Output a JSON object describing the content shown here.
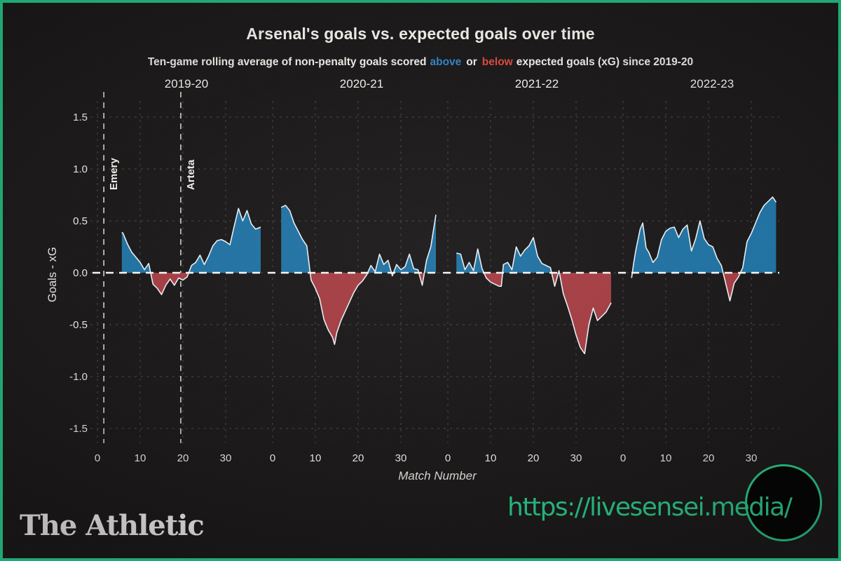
{
  "header": {
    "title": "Arsenal's goals vs. expected goals over time",
    "subtitle": {
      "pre": "Ten-game rolling average of non-penalty goals scored",
      "above_word": "above",
      "or_word": "or",
      "below_word": "below",
      "post": "expected goals (xG) since 2019-20"
    }
  },
  "footer": {
    "logo_text": "The Athletic",
    "watermark_url": "https://livesensei.media/"
  },
  "colors": {
    "background": "#171515",
    "frame_border": "#1fa873",
    "title_text": "#f2f0ec",
    "muted_text": "#dedcd8",
    "above_blue": "#2e80c2",
    "below_red": "#d9453c",
    "area_blue": "#1d6fa0",
    "area_red": "#a23a40",
    "series_line": "#e6edf2",
    "grid": "#454545",
    "zero_line": "#f5f5f3",
    "annotation_line": "#dcdcdc",
    "watermark_green": "#2bc88a"
  },
  "chart_data": {
    "type": "area",
    "title": "Arsenal's goals vs. expected goals over time",
    "subtitle": "Ten-game rolling average of non-penalty goals scored above or below expected goals (xG) since 2019-20",
    "xlabel": "Match Number",
    "ylabel": "Goals - xG",
    "ylim": [
      -1.75,
      1.75
    ],
    "grid": "dashed",
    "fill_rule": "blue above zero, red below zero",
    "yticks": [
      {
        "label": "1.5",
        "value": 1.5
      },
      {
        "label": "1.0",
        "value": 1.0
      },
      {
        "label": "0.5",
        "value": 0.5
      },
      {
        "label": "0.0",
        "value": 0.0
      },
      {
        "label": "-0.5",
        "value": -0.5
      },
      {
        "label": "-1.0",
        "value": -1.0
      },
      {
        "label": "-1.5",
        "value": -1.5
      }
    ],
    "xticks": [
      0,
      10,
      20,
      30
    ],
    "annotations": [
      {
        "label": "Emery",
        "panel": 0,
        "match": 1.5
      },
      {
        "label": "Arteta",
        "panel": 0,
        "match": 19.5
      }
    ],
    "panels": [
      {
        "season": "2019-20",
        "x": [
          5.7,
          6,
          7,
          8,
          9,
          10,
          11,
          12,
          13,
          14,
          15,
          16,
          17,
          18,
          19,
          20,
          21,
          22,
          23,
          24,
          25,
          26,
          27,
          28,
          29,
          30,
          31,
          32,
          33,
          34,
          35,
          36,
          37,
          38.2
        ],
        "y": [
          0.39,
          0.38,
          0.28,
          0.2,
          0.15,
          0.1,
          0.03,
          0.09,
          -0.11,
          -0.15,
          -0.21,
          -0.12,
          -0.06,
          -0.12,
          -0.05,
          -0.07,
          -0.04,
          0.07,
          0.1,
          0.17,
          0.08,
          0.16,
          0.26,
          0.31,
          0.32,
          0.3,
          0.27,
          0.45,
          0.62,
          0.5,
          0.6,
          0.47,
          0.42,
          0.44
        ]
      },
      {
        "season": "2020-21",
        "x": [
          2,
          3,
          4,
          5,
          6,
          7,
          8,
          9,
          10,
          11,
          12,
          13,
          14,
          14.5,
          15,
          16,
          17,
          18,
          19,
          20,
          21,
          22,
          23,
          24,
          25,
          26,
          27,
          28,
          29,
          30,
          31,
          32,
          33,
          34,
          35,
          36,
          37,
          38.2
        ],
        "y": [
          0.63,
          0.65,
          0.6,
          0.48,
          0.4,
          0.32,
          0.26,
          -0.07,
          -0.15,
          -0.25,
          -0.45,
          -0.55,
          -0.62,
          -0.69,
          -0.58,
          -0.46,
          -0.37,
          -0.28,
          -0.19,
          -0.12,
          -0.08,
          -0.02,
          0.07,
          0.01,
          0.18,
          0.08,
          0.12,
          -0.03,
          0.08,
          0.03,
          0.06,
          0.18,
          0.04,
          0.03,
          -0.12,
          0.12,
          0.25,
          0.56
        ]
      },
      {
        "season": "2021-22",
        "x": [
          2,
          3,
          4,
          5,
          6,
          7,
          8,
          9,
          10,
          11,
          12,
          12.5,
          13,
          14,
          15,
          16,
          17,
          18,
          19,
          20,
          21,
          22,
          23,
          24,
          25,
          26,
          27,
          28,
          29,
          30,
          31,
          32,
          33,
          34,
          35,
          36,
          37,
          38.2
        ],
        "y": [
          0.19,
          0.18,
          0.03,
          0.1,
          0.02,
          0.23,
          0.04,
          -0.05,
          -0.09,
          -0.11,
          -0.13,
          -0.13,
          0.08,
          0.1,
          0.03,
          0.25,
          0.16,
          0.22,
          0.26,
          0.34,
          0.16,
          0.09,
          0.07,
          0.05,
          -0.13,
          0.02,
          -0.2,
          -0.32,
          -0.45,
          -0.6,
          -0.72,
          -0.78,
          -0.5,
          -0.34,
          -0.46,
          -0.42,
          -0.38,
          -0.29
        ]
      },
      {
        "season": "2022-23",
        "x": [
          2,
          2.5,
          3,
          4,
          4.6,
          5.4,
          6,
          7,
          8,
          9,
          10,
          11,
          12,
          13,
          14,
          15,
          16,
          17,
          18,
          19,
          20,
          21,
          22,
          23,
          24,
          25,
          26,
          27,
          28,
          29,
          30,
          31,
          32,
          33,
          34,
          35,
          35.8
        ],
        "y": [
          -0.05,
          0.1,
          0.22,
          0.42,
          0.48,
          0.24,
          0.2,
          0.1,
          0.15,
          0.32,
          0.4,
          0.43,
          0.44,
          0.34,
          0.42,
          0.46,
          0.21,
          0.33,
          0.5,
          0.33,
          0.27,
          0.25,
          0.14,
          0.07,
          -0.1,
          -0.27,
          -0.1,
          -0.04,
          0.05,
          0.3,
          0.38,
          0.48,
          0.58,
          0.65,
          0.69,
          0.73,
          0.68
        ]
      }
    ]
  }
}
